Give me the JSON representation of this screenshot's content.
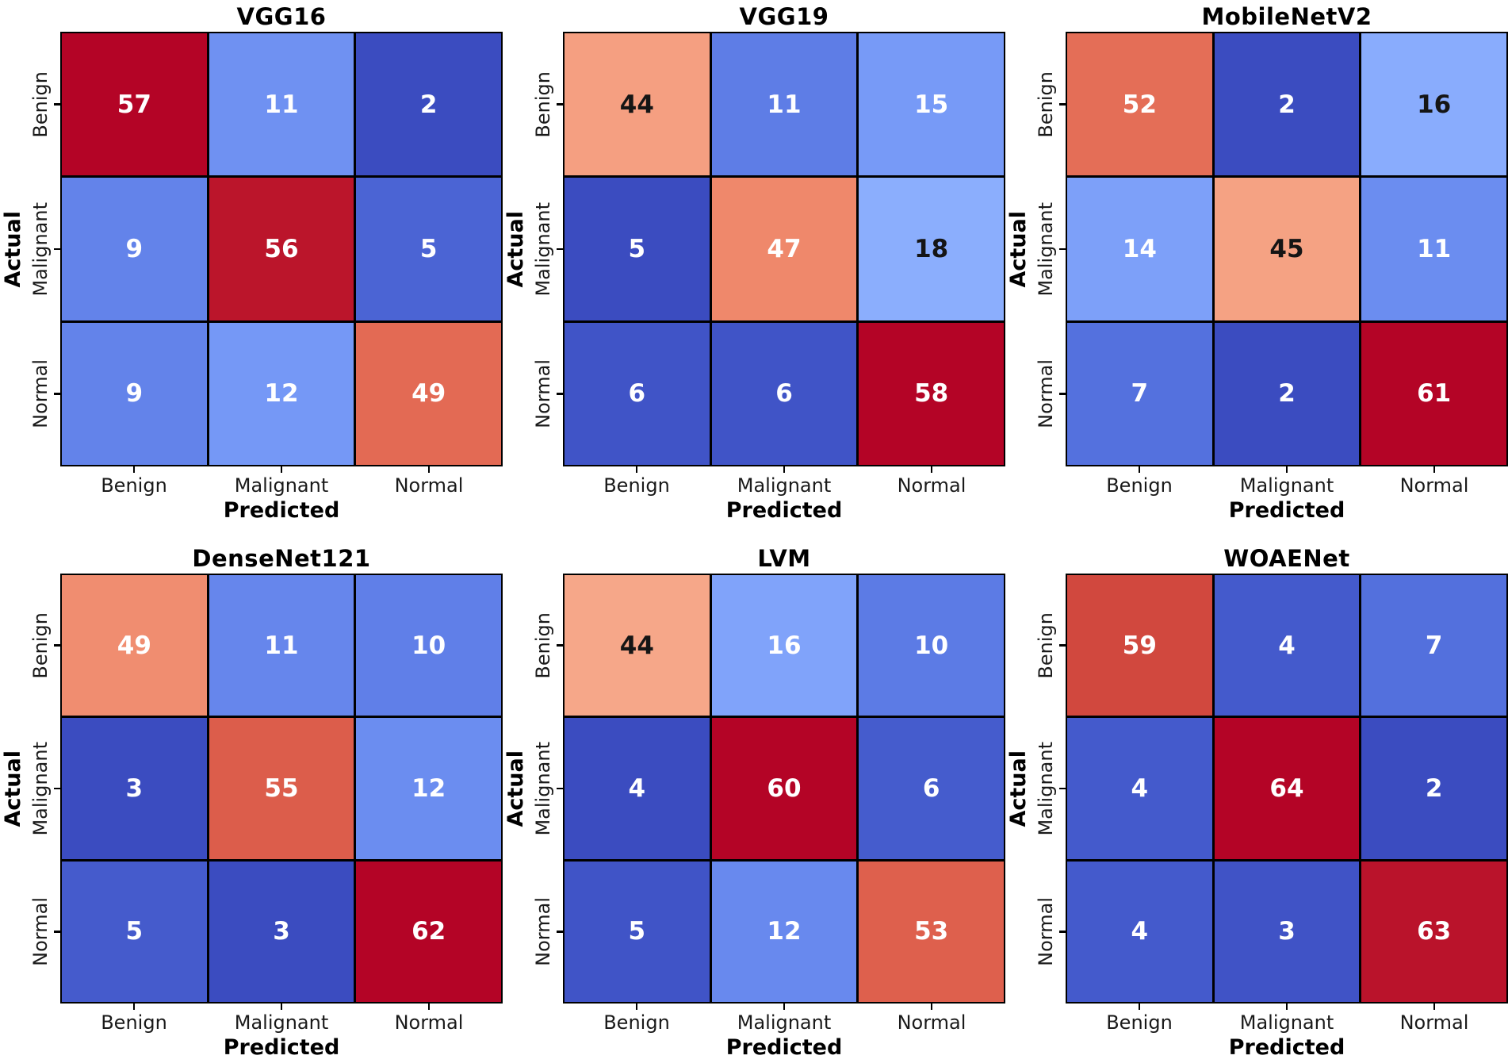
{
  "figure": {
    "background": "#ffffff",
    "grid_layout": "2 rows x 3 columns"
  },
  "chart_data": {
    "type": "heatmap",
    "subtype": "confusion-matrix",
    "xlabel": "Predicted",
    "ylabel": "Actual",
    "classes": [
      "Benign",
      "Malignant",
      "Normal"
    ],
    "normalization": "per-matrix min-max",
    "charts": [
      {
        "title": "VGG16",
        "values": [
          [
            57,
            11,
            2
          ],
          [
            9,
            56,
            5
          ],
          [
            9,
            12,
            49
          ]
        ]
      },
      {
        "title": "VGG19",
        "values": [
          [
            44,
            11,
            15
          ],
          [
            5,
            47,
            18
          ],
          [
            6,
            6,
            58
          ]
        ]
      },
      {
        "title": "MobileNetV2",
        "values": [
          [
            52,
            2,
            16
          ],
          [
            14,
            45,
            11
          ],
          [
            7,
            2,
            61
          ]
        ]
      },
      {
        "title": "DenseNet121",
        "values": [
          [
            49,
            11,
            10
          ],
          [
            3,
            55,
            12
          ],
          [
            5,
            3,
            62
          ]
        ]
      },
      {
        "title": "LVM",
        "values": [
          [
            44,
            16,
            10
          ],
          [
            4,
            60,
            6
          ],
          [
            5,
            12,
            53
          ]
        ]
      },
      {
        "title": "WOAENet",
        "values": [
          [
            59,
            4,
            7
          ],
          [
            4,
            64,
            2
          ],
          [
            4,
            3,
            63
          ]
        ]
      }
    ],
    "colormap": {
      "name": "coolwarm",
      "anchors": [
        [
          0.0,
          "#3b4cc0"
        ],
        [
          0.0625,
          "#4d68d7"
        ],
        [
          0.125,
          "#6282ea"
        ],
        [
          0.1875,
          "#779af7"
        ],
        [
          0.25,
          "#8db0fe"
        ],
        [
          0.3125,
          "#a3c2ff"
        ],
        [
          0.375,
          "#b8d0f9"
        ],
        [
          0.4375,
          "#ccd9ee"
        ],
        [
          0.5,
          "#dddddd"
        ],
        [
          0.5625,
          "#ecd3c5"
        ],
        [
          0.625,
          "#f5c4ad"
        ],
        [
          0.6875,
          "#f7b194"
        ],
        [
          0.75,
          "#f49a7b"
        ],
        [
          0.8125,
          "#ec7f63"
        ],
        [
          0.875,
          "#de604d"
        ],
        [
          0.9375,
          "#cb3e38"
        ],
        [
          1.0,
          "#b40426"
        ]
      ]
    },
    "cell_text": {
      "light": "#ffffff",
      "dark": "#151515",
      "luminance_threshold": 0.65
    },
    "grid_line_color": "#000000"
  }
}
